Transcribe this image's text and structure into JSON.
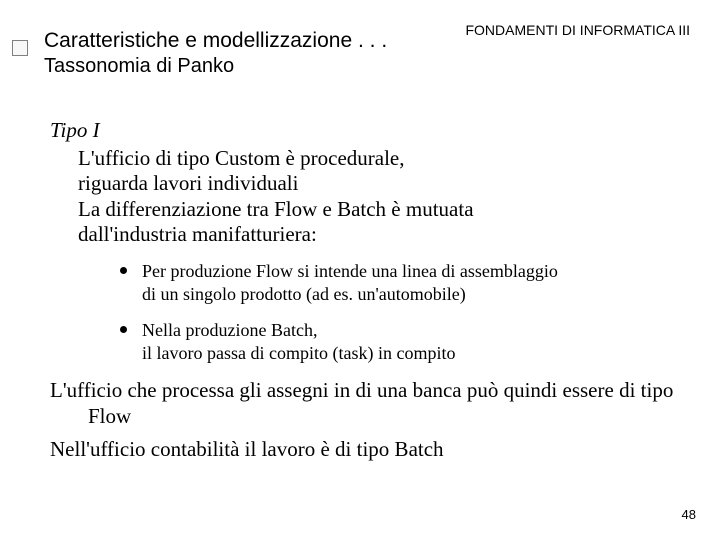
{
  "header": {
    "course": "FONDAMENTI DI INFORMATICA III",
    "title_main": "Caratteristiche e modellizzazione . . .",
    "title_sub": "Tassonomia di Panko"
  },
  "body": {
    "tipo_label": "Tipo I",
    "main_text_line1": "L'ufficio di tipo Custom è procedurale,",
    "main_text_line2": "riguarda lavori individuali",
    "main_text_line3": "La differenziazione tra Flow e Batch è mutuata",
    "main_text_line4": "dall'industria  manifatturiera:",
    "sub1_line1": "Per produzione Flow si intende una linea di assemblaggio",
    "sub1_line2": "di un singolo prodotto (ad es. un'automobile)",
    "sub2_line1": "Nella produzione Batch,",
    "sub2_line2": "il lavoro passa di compito (task) in compito",
    "para1_line1": "L'ufficio che processa gli assegni in di una banca può quindi",
    "para1_line2": "essere di tipo Flow",
    "para2": "Nell'ufficio contabilità il lavoro è di tipo Batch"
  },
  "footer": {
    "page": "48"
  },
  "styles": {
    "background_color": "#ffffff",
    "text_color": "#000000",
    "header_font": "Verdana",
    "body_font": "Times New Roman",
    "title_fontsize": 21,
    "header_right_fontsize": 14,
    "body_fontsize": 21,
    "sub_fontsize": 18,
    "page_fontsize": 13,
    "bullet_color": "#000000",
    "side_bullet_border": "#808080"
  }
}
